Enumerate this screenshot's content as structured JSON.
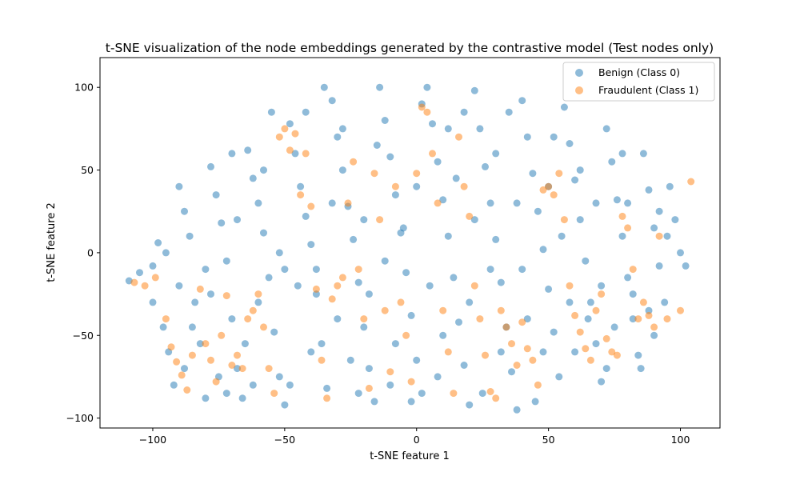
{
  "chart_data": {
    "type": "scatter",
    "title": "t-SNE visualization of the node embeddings generated by the contrastive model (Test nodes only)",
    "xlabel": "t-SNE feature 1",
    "ylabel": "t-SNE feature 2",
    "xlim": [
      -120,
      115
    ],
    "ylim": [
      -106,
      118
    ],
    "xticks": [
      -100,
      -50,
      0,
      50,
      100
    ],
    "yticks": [
      -100,
      -50,
      0,
      50,
      100
    ],
    "grid": false,
    "legend_position": "top-right",
    "point_alpha": 0.5,
    "series": [
      {
        "name": "Benign (Class 0)",
        "color": "#1f77b4",
        "points": [
          [
            -109,
            -17
          ],
          [
            -105,
            -12
          ],
          [
            -100,
            -8
          ],
          [
            -98,
            6
          ],
          [
            -96,
            -45
          ],
          [
            -94,
            -60
          ],
          [
            -92,
            -80
          ],
          [
            -90,
            40
          ],
          [
            -88,
            25
          ],
          [
            -86,
            10
          ],
          [
            -84,
            -30
          ],
          [
            -82,
            -55
          ],
          [
            -80,
            -88
          ],
          [
            -78,
            52
          ],
          [
            -76,
            35
          ],
          [
            -74,
            18
          ],
          [
            -72,
            -5
          ],
          [
            -70,
            -40
          ],
          [
            -68,
            -70
          ],
          [
            -66,
            -88
          ],
          [
            -64,
            62
          ],
          [
            -62,
            45
          ],
          [
            -60,
            30
          ],
          [
            -58,
            12
          ],
          [
            -56,
            -15
          ],
          [
            -54,
            -48
          ],
          [
            -52,
            -75
          ],
          [
            -50,
            -92
          ],
          [
            -48,
            78
          ],
          [
            -46,
            60
          ],
          [
            -44,
            40
          ],
          [
            -42,
            22
          ],
          [
            -40,
            5
          ],
          [
            -38,
            -25
          ],
          [
            -36,
            -55
          ],
          [
            -34,
            -82
          ],
          [
            -32,
            92
          ],
          [
            -30,
            70
          ],
          [
            -28,
            50
          ],
          [
            -26,
            28
          ],
          [
            -24,
            8
          ],
          [
            -22,
            -18
          ],
          [
            -20,
            -45
          ],
          [
            -18,
            -70
          ],
          [
            -16,
            -90
          ],
          [
            -14,
            100
          ],
          [
            -12,
            80
          ],
          [
            -10,
            58
          ],
          [
            -8,
            35
          ],
          [
            -6,
            12
          ],
          [
            -4,
            -12
          ],
          [
            -2,
            -38
          ],
          [
            0,
            -65
          ],
          [
            2,
            -85
          ],
          [
            4,
            100
          ],
          [
            6,
            78
          ],
          [
            8,
            55
          ],
          [
            10,
            32
          ],
          [
            12,
            10
          ],
          [
            14,
            -15
          ],
          [
            16,
            -42
          ],
          [
            18,
            -68
          ],
          [
            20,
            -92
          ],
          [
            22,
            98
          ],
          [
            24,
            75
          ],
          [
            26,
            52
          ],
          [
            28,
            30
          ],
          [
            30,
            8
          ],
          [
            32,
            -18
          ],
          [
            34,
            -45
          ],
          [
            36,
            -72
          ],
          [
            38,
            -95
          ],
          [
            40,
            92
          ],
          [
            42,
            70
          ],
          [
            44,
            48
          ],
          [
            46,
            25
          ],
          [
            48,
            2
          ],
          [
            50,
            -22
          ],
          [
            52,
            -48
          ],
          [
            54,
            -75
          ],
          [
            56,
            88
          ],
          [
            58,
            66
          ],
          [
            60,
            44
          ],
          [
            62,
            20
          ],
          [
            64,
            -5
          ],
          [
            66,
            -30
          ],
          [
            68,
            -55
          ],
          [
            70,
            -78
          ],
          [
            72,
            75
          ],
          [
            74,
            55
          ],
          [
            76,
            32
          ],
          [
            78,
            10
          ],
          [
            80,
            -15
          ],
          [
            82,
            -40
          ],
          [
            84,
            -62
          ],
          [
            86,
            60
          ],
          [
            88,
            38
          ],
          [
            90,
            15
          ],
          [
            92,
            -8
          ],
          [
            94,
            -30
          ],
          [
            96,
            40
          ],
          [
            98,
            20
          ],
          [
            100,
            0
          ],
          [
            102,
            -8
          ],
          [
            -80,
            -10
          ],
          [
            -60,
            -30
          ],
          [
            -40,
            -60
          ],
          [
            -20,
            20
          ],
          [
            0,
            40
          ],
          [
            20,
            -30
          ],
          [
            40,
            -10
          ],
          [
            60,
            -60
          ],
          [
            80,
            30
          ],
          [
            -70,
            60
          ],
          [
            -50,
            -10
          ],
          [
            -30,
            -40
          ],
          [
            -10,
            -80
          ],
          [
            10,
            -50
          ],
          [
            30,
            60
          ],
          [
            50,
            40
          ],
          [
            70,
            -20
          ],
          [
            90,
            -50
          ],
          [
            -90,
            -20
          ],
          [
            -100,
            -30
          ],
          [
            -75,
            -75
          ],
          [
            -55,
            85
          ],
          [
            -35,
            100
          ],
          [
            -15,
            65
          ],
          [
            5,
            -20
          ],
          [
            25,
            -85
          ],
          [
            45,
            -90
          ],
          [
            65,
            -40
          ],
          [
            85,
            -70
          ],
          [
            -95,
            0
          ],
          [
            -85,
            -45
          ],
          [
            -65,
            -55
          ],
          [
            -45,
            -20
          ],
          [
            -25,
            -65
          ],
          [
            -5,
            15
          ],
          [
            15,
            45
          ],
          [
            35,
            85
          ],
          [
            55,
            10
          ],
          [
            75,
            -45
          ],
          [
            95,
            10
          ],
          [
            -88,
            -70
          ],
          [
            -68,
            20
          ],
          [
            -48,
            -80
          ],
          [
            -28,
            75
          ],
          [
            -8,
            -55
          ],
          [
            12,
            75
          ],
          [
            32,
            -60
          ],
          [
            52,
            70
          ],
          [
            72,
            -70
          ],
          [
            92,
            25
          ],
          [
            -78,
            -25
          ],
          [
            -58,
            50
          ],
          [
            -38,
            -10
          ],
          [
            -18,
            -25
          ],
          [
            2,
            90
          ],
          [
            22,
            20
          ],
          [
            42,
            -40
          ],
          [
            62,
            50
          ],
          [
            82,
            -25
          ],
          [
            -72,
            -85
          ],
          [
            -52,
            0
          ],
          [
            -32,
            30
          ],
          [
            -12,
            -5
          ],
          [
            8,
            -75
          ],
          [
            28,
            -10
          ],
          [
            48,
            -60
          ],
          [
            68,
            30
          ],
          [
            88,
            -35
          ],
          [
            -62,
            -80
          ],
          [
            -42,
            85
          ],
          [
            -22,
            -85
          ],
          [
            -2,
            -90
          ],
          [
            18,
            85
          ],
          [
            38,
            30
          ],
          [
            58,
            -30
          ],
          [
            78,
            60
          ]
        ]
      },
      {
        "name": "Fraudulent (Class 1)",
        "color": "#ff7f0e",
        "points": [
          [
            -103,
            -20
          ],
          [
            -99,
            -15
          ],
          [
            -95,
            -40
          ],
          [
            -93,
            -57
          ],
          [
            -91,
            -66
          ],
          [
            -89,
            -74
          ],
          [
            -87,
            -83
          ],
          [
            -85,
            -62
          ],
          [
            -82,
            -22
          ],
          [
            -80,
            -55
          ],
          [
            -78,
            -65
          ],
          [
            -76,
            -78
          ],
          [
            -74,
            -50
          ],
          [
            -72,
            -26
          ],
          [
            -70,
            -68
          ],
          [
            -68,
            -62
          ],
          [
            -66,
            -70
          ],
          [
            -64,
            -40
          ],
          [
            -62,
            -35
          ],
          [
            -60,
            -25
          ],
          [
            -58,
            -45
          ],
          [
            -56,
            -70
          ],
          [
            -54,
            -85
          ],
          [
            -52,
            70
          ],
          [
            -50,
            75
          ],
          [
            -48,
            62
          ],
          [
            -46,
            72
          ],
          [
            -44,
            35
          ],
          [
            -42,
            60
          ],
          [
            -40,
            28
          ],
          [
            -38,
            -22
          ],
          [
            -36,
            -65
          ],
          [
            -34,
            -88
          ],
          [
            -32,
            -28
          ],
          [
            -30,
            -20
          ],
          [
            -28,
            -15
          ],
          [
            -26,
            30
          ],
          [
            -24,
            55
          ],
          [
            -22,
            -10
          ],
          [
            -20,
            -40
          ],
          [
            -18,
            -82
          ],
          [
            -16,
            48
          ],
          [
            -14,
            20
          ],
          [
            -12,
            -35
          ],
          [
            -10,
            -72
          ],
          [
            -8,
            40
          ],
          [
            -6,
            -30
          ],
          [
            -4,
            -50
          ],
          [
            -2,
            -78
          ],
          [
            0,
            48
          ],
          [
            2,
            88
          ],
          [
            4,
            85
          ],
          [
            6,
            60
          ],
          [
            8,
            30
          ],
          [
            10,
            -35
          ],
          [
            12,
            -60
          ],
          [
            14,
            -85
          ],
          [
            16,
            70
          ],
          [
            18,
            40
          ],
          [
            20,
            22
          ],
          [
            22,
            -20
          ],
          [
            24,
            -40
          ],
          [
            26,
            -62
          ],
          [
            28,
            -84
          ],
          [
            30,
            -88
          ],
          [
            32,
            -35
          ],
          [
            34,
            -45
          ],
          [
            36,
            -55
          ],
          [
            38,
            -68
          ],
          [
            40,
            -42
          ],
          [
            42,
            -58
          ],
          [
            44,
            -65
          ],
          [
            46,
            -80
          ],
          [
            48,
            38
          ],
          [
            50,
            40
          ],
          [
            52,
            35
          ],
          [
            54,
            48
          ],
          [
            56,
            20
          ],
          [
            58,
            -20
          ],
          [
            60,
            -38
          ],
          [
            62,
            -48
          ],
          [
            64,
            -58
          ],
          [
            66,
            -65
          ],
          [
            68,
            -35
          ],
          [
            70,
            -25
          ],
          [
            72,
            -52
          ],
          [
            74,
            -60
          ],
          [
            76,
            -62
          ],
          [
            78,
            22
          ],
          [
            80,
            15
          ],
          [
            82,
            -10
          ],
          [
            84,
            -40
          ],
          [
            86,
            -30
          ],
          [
            88,
            -38
          ],
          [
            90,
            -45
          ],
          [
            92,
            10
          ],
          [
            95,
            -40
          ],
          [
            100,
            -35
          ],
          [
            104,
            43
          ],
          [
            -107,
            -18
          ]
        ]
      }
    ]
  }
}
